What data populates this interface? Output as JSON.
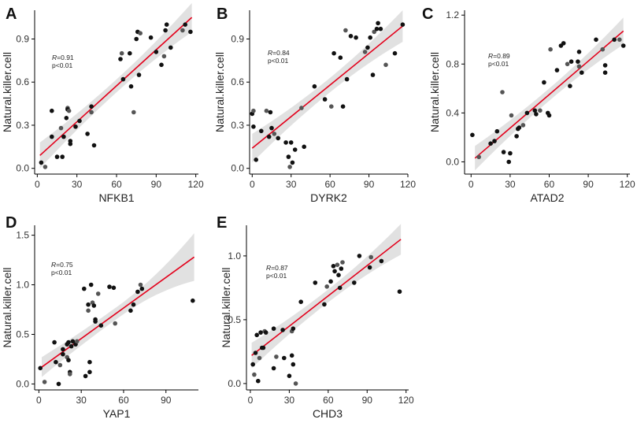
{
  "chart_data": [
    {
      "panel": "A",
      "type": "scatter",
      "xlabel": "NFKB1",
      "ylabel": "Natural.killer.cell",
      "xlim": [
        -2,
        122
      ],
      "ylim": [
        -0.04,
        1.1
      ],
      "xticks": [
        0,
        30,
        60,
        90,
        120
      ],
      "yticks": [
        0.0,
        0.3,
        0.6,
        0.9
      ],
      "ytick_labels": [
        "0.0",
        "0.3",
        "0.6",
        "0.9"
      ],
      "annotation": {
        "r_label": "R",
        "r_value": "=0.91",
        "p_text": "p<0.01"
      },
      "fit": {
        "x0": 2,
        "y0": 0.09,
        "x1": 117,
        "y1": 1.05
      },
      "ci_halfwidth": {
        "start": 0.09,
        "mid": 0.045,
        "end": 0.1
      },
      "point_colors": [
        "#111111",
        "#555555"
      ],
      "points": [
        [
          3,
          0.04
        ],
        [
          6,
          0.01
        ],
        [
          11,
          0.4
        ],
        [
          11,
          0.22
        ],
        [
          15,
          0.08
        ],
        [
          18,
          0.28
        ],
        [
          19,
          0.08
        ],
        [
          20,
          0.22
        ],
        [
          22,
          0.35
        ],
        [
          23,
          0.42
        ],
        [
          23,
          0.41
        ],
        [
          25,
          0.17
        ],
        [
          25,
          0.19
        ],
        [
          24,
          0.4
        ],
        [
          29,
          0.29
        ],
        [
          32,
          0.33
        ],
        [
          38,
          0.24
        ],
        [
          41,
          0.39
        ],
        [
          41,
          0.43
        ],
        [
          43,
          0.16
        ],
        [
          63,
          0.76
        ],
        [
          64,
          0.8
        ],
        [
          65,
          0.62
        ],
        [
          70,
          0.8
        ],
        [
          71,
          0.57
        ],
        [
          73,
          0.39
        ],
        [
          75,
          0.9
        ],
        [
          76,
          0.95
        ],
        [
          77,
          0.65
        ],
        [
          78,
          0.94
        ],
        [
          86,
          0.91
        ],
        [
          90,
          0.81
        ],
        [
          94,
          0.72
        ],
        [
          96,
          0.78
        ],
        [
          97,
          0.96
        ],
        [
          98,
          1.0
        ],
        [
          101,
          0.84
        ],
        [
          110,
          0.96
        ],
        [
          112,
          1.0
        ],
        [
          116,
          0.95
        ]
      ]
    },
    {
      "panel": "B",
      "type": "scatter",
      "xlabel": "DYRK2",
      "ylabel": "Natural.killer.cell",
      "xlim": [
        -2,
        120
      ],
      "ylim": [
        -0.04,
        1.1
      ],
      "xticks": [
        0,
        30,
        60,
        90,
        120
      ],
      "yticks": [
        0.0,
        0.3,
        0.6,
        0.9
      ],
      "ytick_labels": [
        "0.0",
        "0.3",
        "0.6",
        "0.9"
      ],
      "annotation": {
        "r_label": "R",
        "r_value": "=0.84",
        "p_text": "p<0.01"
      },
      "fit": {
        "x0": 0,
        "y0": 0.14,
        "x1": 116,
        "y1": 0.99
      },
      "ci_halfwidth": {
        "start": 0.1,
        "mid": 0.05,
        "end": 0.11
      },
      "point_colors": [
        "#111111",
        "#555555"
      ],
      "points": [
        [
          0,
          0.38
        ],
        [
          1,
          0.4
        ],
        [
          1,
          0.29
        ],
        [
          3,
          0.06
        ],
        [
          7,
          0.26
        ],
        [
          11,
          0.4
        ],
        [
          13,
          0.22
        ],
        [
          14,
          0.39
        ],
        [
          15,
          0.28
        ],
        [
          17,
          0.24
        ],
        [
          20,
          0.21
        ],
        [
          26,
          0.18
        ],
        [
          28,
          0.08
        ],
        [
          29,
          0.01
        ],
        [
          30,
          0.18
        ],
        [
          31,
          0.04
        ],
        [
          33,
          0.13
        ],
        [
          38,
          0.42
        ],
        [
          40,
          0.15
        ],
        [
          48,
          0.57
        ],
        [
          56,
          0.48
        ],
        [
          61,
          0.43
        ],
        [
          63,
          0.8
        ],
        [
          68,
          0.77
        ],
        [
          70,
          0.43
        ],
        [
          72,
          0.96
        ],
        [
          73,
          0.62
        ],
        [
          76,
          0.92
        ],
        [
          80,
          0.91
        ],
        [
          87,
          0.81
        ],
        [
          89,
          0.84
        ],
        [
          91,
          0.91
        ],
        [
          93,
          0.65
        ],
        [
          94,
          0.95
        ],
        [
          96,
          0.97
        ],
        [
          97,
          1.01
        ],
        [
          99,
          0.97
        ],
        [
          103,
          0.72
        ],
        [
          110,
          0.8
        ],
        [
          116,
          1.0
        ]
      ]
    },
    {
      "panel": "C",
      "type": "scatter",
      "xlabel": "ATAD2",
      "ylabel": "Natural.killer.cell",
      "xlim": [
        -5,
        122
      ],
      "ylim": [
        -0.1,
        1.24
      ],
      "xticks": [
        0,
        30,
        60,
        90,
        120
      ],
      "yticks": [
        0.0,
        0.4,
        0.8,
        1.2
      ],
      "ytick_labels": [
        "0.0",
        "0.4",
        "0.8",
        "1.2"
      ],
      "annotation": {
        "r_label": "R",
        "r_value": "=0.89",
        "p_text": "p<0.01"
      },
      "fit": {
        "x0": 3,
        "y0": 0.03,
        "x1": 117,
        "y1": 1.07
      },
      "ci_halfwidth": {
        "start": 0.1,
        "mid": 0.05,
        "end": 0.11
      },
      "point_colors": [
        "#111111",
        "#555555"
      ],
      "points": [
        [
          1,
          0.22
        ],
        [
          6,
          0.04
        ],
        [
          15,
          0.15
        ],
        [
          18,
          0.17
        ],
        [
          20,
          0.25
        ],
        [
          24,
          0.57
        ],
        [
          25,
          0.08
        ],
        [
          29,
          0.0
        ],
        [
          30,
          0.07
        ],
        [
          31,
          0.38
        ],
        [
          35,
          0.21
        ],
        [
          36,
          0.27
        ],
        [
          37,
          0.28
        ],
        [
          40,
          0.3
        ],
        [
          43,
          0.4
        ],
        [
          49,
          0.42
        ],
        [
          50,
          0.39
        ],
        [
          53,
          0.42
        ],
        [
          56,
          0.65
        ],
        [
          59,
          0.4
        ],
        [
          60,
          0.38
        ],
        [
          61,
          0.92
        ],
        [
          66,
          0.75
        ],
        [
          69,
          0.95
        ],
        [
          71,
          0.97
        ],
        [
          74,
          0.8
        ],
        [
          76,
          0.62
        ],
        [
          77,
          0.82
        ],
        [
          82,
          0.82
        ],
        [
          83,
          0.78
        ],
        [
          83,
          0.9
        ],
        [
          85,
          0.73
        ],
        [
          96,
          1.0
        ],
        [
          101,
          0.92
        ],
        [
          103,
          0.79
        ],
        [
          103,
          0.73
        ],
        [
          110,
          1.0
        ],
        [
          114,
          1.0
        ],
        [
          117,
          0.95
        ]
      ]
    },
    {
      "panel": "D",
      "type": "scatter",
      "xlabel": "YAP1",
      "ylabel": "Natural.killer.cell",
      "xlim": [
        -3,
        113
      ],
      "ylim": [
        -0.06,
        1.6
      ],
      "xticks": [
        0,
        30,
        60,
        90
      ],
      "yticks": [
        0.0,
        0.5,
        1.0,
        1.5
      ],
      "ytick_labels": [
        "0.0",
        "0.5",
        "1.0",
        "1.5"
      ],
      "annotation": {
        "r_label": "R",
        "r_value": "=0.75",
        "p_text": "p<0.01"
      },
      "fit": {
        "x0": 2,
        "y0": 0.17,
        "x1": 110,
        "y1": 1.28
      },
      "ci_halfwidth": {
        "start": 0.1,
        "mid": 0.06,
        "end": 0.24
      },
      "point_colors": [
        "#111111",
        "#555555"
      ],
      "points": [
        [
          1,
          0.16
        ],
        [
          4,
          0.02
        ],
        [
          11,
          0.42
        ],
        [
          12,
          0.22
        ],
        [
          14,
          0.0
        ],
        [
          15,
          0.19
        ],
        [
          17,
          0.35
        ],
        [
          17,
          0.3
        ],
        [
          20,
          0.4
        ],
        [
          20,
          0.27
        ],
        [
          21,
          0.24
        ],
        [
          21,
          0.42
        ],
        [
          22,
          0.12
        ],
        [
          22,
          0.1
        ],
        [
          23,
          0.38
        ],
        [
          24,
          0.43
        ],
        [
          26,
          0.4
        ],
        [
          27,
          0.43
        ],
        [
          32,
          0.96
        ],
        [
          33,
          0.08
        ],
        [
          35,
          0.8
        ],
        [
          35,
          0.74
        ],
        [
          36,
          0.22
        ],
        [
          36,
          0.12
        ],
        [
          37,
          1.0
        ],
        [
          38,
          0.82
        ],
        [
          39,
          0.79
        ],
        [
          40,
          0.65
        ],
        [
          40,
          0.63
        ],
        [
          42,
          0.91
        ],
        [
          44,
          0.59
        ],
        [
          50,
          0.98
        ],
        [
          53,
          0.97
        ],
        [
          54,
          0.61
        ],
        [
          65,
          0.74
        ],
        [
          67,
          0.8
        ],
        [
          70,
          0.93
        ],
        [
          72,
          1.0
        ],
        [
          73,
          0.96
        ],
        [
          109,
          0.84
        ]
      ]
    },
    {
      "panel": "E",
      "type": "scatter",
      "xlabel": "CHD3",
      "ylabel": "Natural.killer.cell",
      "xlim": [
        -3,
        122
      ],
      "ylim": [
        -0.05,
        1.24
      ],
      "xticks": [
        0,
        30,
        60,
        90,
        120
      ],
      "yticks": [
        0.0,
        0.5,
        1.0
      ],
      "ytick_labels": [
        "0.0",
        "0.5",
        "1.0"
      ],
      "annotation": {
        "r_label": "R",
        "r_value": "=0.87",
        "p_text": "p<0.01"
      },
      "fit": {
        "x0": 1,
        "y0": 0.22,
        "x1": 116,
        "y1": 1.13
      },
      "ci_halfwidth": {
        "start": 0.1,
        "mid": 0.05,
        "end": 0.12
      },
      "point_colors": [
        "#111111",
        "#555555"
      ],
      "points": [
        [
          2,
          0.15
        ],
        [
          3,
          0.07
        ],
        [
          4,
          0.24
        ],
        [
          5,
          0.38
        ],
        [
          6,
          0.02
        ],
        [
          7,
          0.2
        ],
        [
          8,
          0.4
        ],
        [
          9,
          0.28
        ],
        [
          10,
          0.28
        ],
        [
          11,
          0.41
        ],
        [
          12,
          0.4
        ],
        [
          18,
          0.43
        ],
        [
          18,
          0.12
        ],
        [
          20,
          0.21
        ],
        [
          25,
          0.42
        ],
        [
          26,
          0.2
        ],
        [
          30,
          0.06
        ],
        [
          32,
          0.41
        ],
        [
          32,
          0.22
        ],
        [
          33,
          0.43
        ],
        [
          33,
          0.15
        ],
        [
          35,
          0.0
        ],
        [
          39,
          0.64
        ],
        [
          50,
          0.79
        ],
        [
          57,
          0.62
        ],
        [
          59,
          0.76
        ],
        [
          62,
          0.8
        ],
        [
          64,
          0.92
        ],
        [
          65,
          0.88
        ],
        [
          67,
          0.93
        ],
        [
          68,
          0.85
        ],
        [
          69,
          0.75
        ],
        [
          70,
          0.9
        ],
        [
          71,
          0.95
        ],
        [
          80,
          0.79
        ],
        [
          84,
          1.0
        ],
        [
          92,
          0.91
        ],
        [
          93,
          0.99
        ],
        [
          101,
          0.96
        ],
        [
          115,
          0.72
        ]
      ]
    }
  ]
}
